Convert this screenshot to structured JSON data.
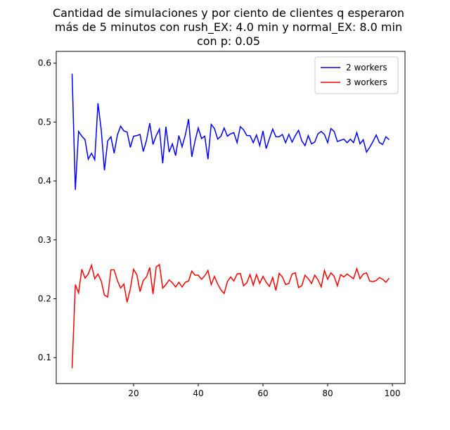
{
  "chart_data": {
    "type": "line",
    "title": [
      "Cantidad de simulaciones y por ciento de clientes q esperaron",
      "más de 5 minutos con rush_EX: 4.0 min y normal_EX: 8.0 min",
      "con p: 0.05"
    ],
    "x": [
      1,
      2,
      3,
      4,
      5,
      6,
      7,
      8,
      9,
      10,
      11,
      12,
      13,
      14,
      15,
      16,
      17,
      18,
      19,
      20,
      21,
      22,
      23,
      24,
      25,
      26,
      27,
      28,
      29,
      30,
      31,
      32,
      33,
      34,
      35,
      36,
      37,
      38,
      39,
      40,
      41,
      42,
      43,
      44,
      45,
      46,
      47,
      48,
      49,
      50,
      51,
      52,
      53,
      54,
      55,
      56,
      57,
      58,
      59,
      60,
      61,
      62,
      63,
      64,
      65,
      66,
      67,
      68,
      69,
      70,
      71,
      72,
      73,
      74,
      75,
      76,
      77,
      78,
      79,
      80,
      81,
      82,
      83,
      84,
      85,
      86,
      87,
      88,
      89,
      90,
      91,
      92,
      93,
      94,
      95,
      96,
      97,
      98,
      99
    ],
    "series": [
      {
        "name": "2 workers",
        "color": "#0000ff",
        "values": [
          0.582,
          0.385,
          0.484,
          0.476,
          0.47,
          0.437,
          0.447,
          0.436,
          0.532,
          0.487,
          0.418,
          0.468,
          0.475,
          0.447,
          0.478,
          0.493,
          0.485,
          0.483,
          0.457,
          0.476,
          0.477,
          0.479,
          0.45,
          0.469,
          0.498,
          0.462,
          0.477,
          0.488,
          0.43,
          0.492,
          0.449,
          0.463,
          0.443,
          0.477,
          0.458,
          0.478,
          0.505,
          0.441,
          0.468,
          0.49,
          0.472,
          0.476,
          0.437,
          0.496,
          0.489,
          0.471,
          0.476,
          0.49,
          0.476,
          0.48,
          0.482,
          0.465,
          0.492,
          0.487,
          0.477,
          0.477,
          0.465,
          0.478,
          0.46,
          0.485,
          0.455,
          0.472,
          0.488,
          0.475,
          0.475,
          0.479,
          0.465,
          0.479,
          0.466,
          0.477,
          0.486,
          0.468,
          0.46,
          0.477,
          0.463,
          0.466,
          0.48,
          0.484,
          0.479,
          0.465,
          0.489,
          0.484,
          0.467,
          0.469,
          0.471,
          0.465,
          0.471,
          0.465,
          0.482,
          0.463,
          0.47,
          0.449,
          0.457,
          0.467,
          0.478,
          0.465,
          0.462,
          0.475,
          0.47
        ]
      },
      {
        "name": "3 workers",
        "color": "#ff0000",
        "values": [
          0.082,
          0.224,
          0.21,
          0.25,
          0.235,
          0.242,
          0.257,
          0.234,
          0.242,
          0.23,
          0.206,
          0.203,
          0.249,
          0.249,
          0.231,
          0.218,
          0.225,
          0.194,
          0.217,
          0.25,
          0.241,
          0.212,
          0.231,
          0.237,
          0.253,
          0.208,
          0.254,
          0.258,
          0.218,
          0.224,
          0.232,
          0.227,
          0.22,
          0.228,
          0.22,
          0.228,
          0.23,
          0.247,
          0.24,
          0.24,
          0.233,
          0.239,
          0.248,
          0.224,
          0.238,
          0.225,
          0.215,
          0.209,
          0.229,
          0.237,
          0.23,
          0.242,
          0.243,
          0.222,
          0.227,
          0.241,
          0.223,
          0.241,
          0.226,
          0.238,
          0.228,
          0.221,
          0.236,
          0.214,
          0.243,
          0.237,
          0.224,
          0.226,
          0.242,
          0.244,
          0.219,
          0.222,
          0.24,
          0.234,
          0.226,
          0.24,
          0.232,
          0.22,
          0.248,
          0.233,
          0.244,
          0.238,
          0.222,
          0.241,
          0.237,
          0.242,
          0.238,
          0.234,
          0.251,
          0.234,
          0.242,
          0.244,
          0.23,
          0.229,
          0.231,
          0.236,
          0.233,
          0.228,
          0.235
        ]
      }
    ],
    "xlim": [
      -3.9,
      103.9
    ],
    "ylim": [
      0.056,
      0.62
    ],
    "xticks": [
      20,
      40,
      60,
      80,
      100
    ],
    "yticks": [
      0.1,
      0.2,
      0.3,
      0.4,
      0.5,
      0.6
    ],
    "legend": "upper right"
  }
}
